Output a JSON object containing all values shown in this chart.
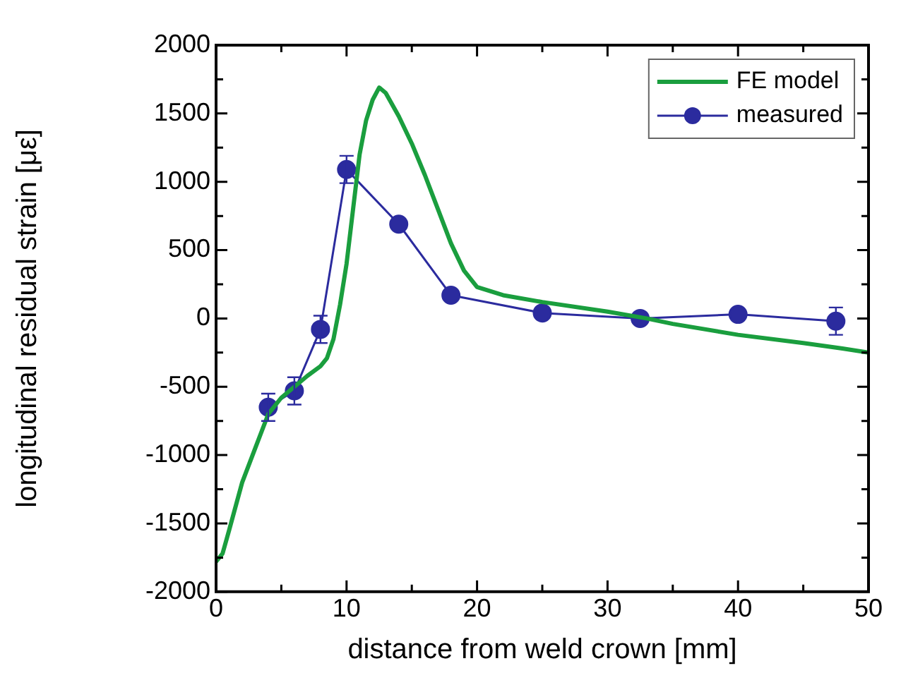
{
  "chart_data": {
    "type": "line",
    "xlabel": "distance from weld crown [mm]",
    "ylabel": "longitudinal residual strain [με]",
    "xlim": [
      0,
      50
    ],
    "xticks": [
      0,
      10,
      20,
      30,
      40,
      50
    ],
    "ylim": [
      -2000,
      2000
    ],
    "yticks": [
      -2000,
      -1500,
      -1000,
      -500,
      0,
      500,
      1000,
      1500,
      2000
    ],
    "legend": "top right",
    "grid": false,
    "series": [
      {
        "name": "FE model",
        "color": "#1a9e3e",
        "marker": "none",
        "x": [
          0,
          0.5,
          1,
          2,
          3,
          4,
          5,
          6,
          7,
          8,
          8.5,
          9,
          9.5,
          10,
          10.5,
          11,
          11.5,
          12,
          12.5,
          13,
          14,
          15,
          16,
          17,
          18,
          19,
          20,
          22,
          25,
          30,
          33,
          35,
          40,
          45,
          48,
          50
        ],
        "values": [
          -1780,
          -1720,
          -1550,
          -1200,
          -950,
          -700,
          -580,
          -500,
          -420,
          -350,
          -290,
          -150,
          100,
          400,
          800,
          1200,
          1450,
          1600,
          1690,
          1650,
          1480,
          1280,
          1050,
          800,
          550,
          350,
          230,
          170,
          120,
          50,
          0,
          -40,
          -120,
          -180,
          -220,
          -250
        ]
      },
      {
        "name": "measured",
        "color": "#2b2b9e",
        "marker": "circle",
        "x": [
          4,
          6,
          8,
          10,
          14,
          18,
          25,
          32.5,
          40,
          47.5
        ],
        "values": [
          -650,
          -530,
          -80,
          1090,
          690,
          170,
          40,
          0,
          30,
          -20
        ],
        "errors": [
          100,
          100,
          100,
          100,
          null,
          null,
          null,
          null,
          null,
          100
        ]
      }
    ]
  }
}
